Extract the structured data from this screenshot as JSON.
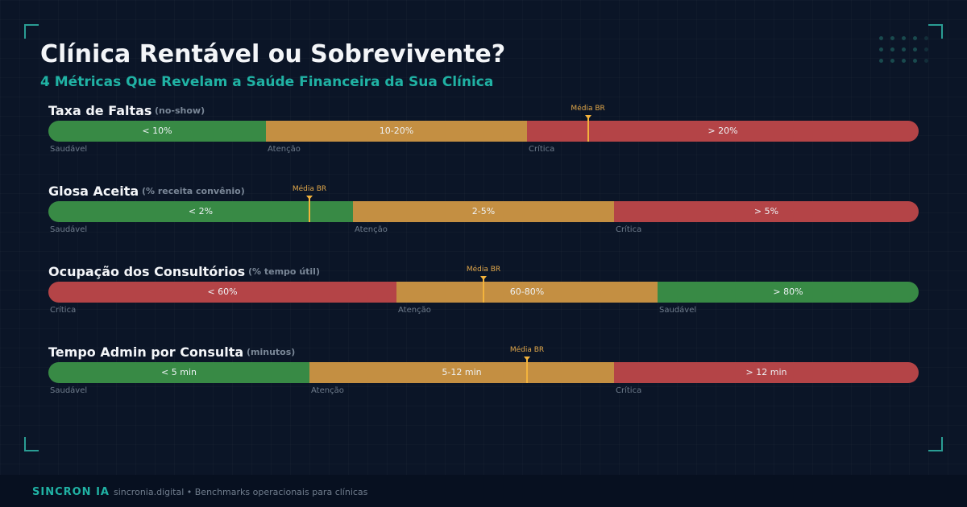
{
  "header": {
    "title": "Clínica Rentável ou Sobrevivente?",
    "subtitle": "4 Métricas Que Revelam a Saúde Financeira da Sua Clínica"
  },
  "chart_data": {
    "type": "bar",
    "marker_label": "Média BR",
    "colors": {
      "healthy": "#388a45",
      "warning": "#c48f42",
      "critical": "#b44447",
      "marker": "#f3b33c"
    },
    "metrics": [
      {
        "label": "Taxa de Faltas",
        "note": "(no-show)",
        "segments": [
          {
            "range": "< 10%",
            "status": "Saudável",
            "kind": "healthy",
            "share": 0.25
          },
          {
            "range": "10-20%",
            "status": "Atenção",
            "kind": "warning",
            "share": 0.3
          },
          {
            "range": "> 20%",
            "status": "Crítica",
            "kind": "critical",
            "share": 0.45
          }
        ],
        "benchmark": 0.62
      },
      {
        "label": "Glosa Aceita",
        "note": "(% receita convênio)",
        "segments": [
          {
            "range": "< 2%",
            "status": "Saudável",
            "kind": "healthy",
            "share": 0.35
          },
          {
            "range": "2-5%",
            "status": "Atenção",
            "kind": "warning",
            "share": 0.3
          },
          {
            "range": "> 5%",
            "status": "Crítica",
            "kind": "critical",
            "share": 0.35
          }
        ],
        "benchmark": 0.3
      },
      {
        "label": "Ocupação dos Consultórios",
        "note": "(% tempo útil)",
        "segments": [
          {
            "range": "< 60%",
            "status": "Crítica",
            "kind": "critical",
            "share": 0.4
          },
          {
            "range": "60-80%",
            "status": "Atenção",
            "kind": "warning",
            "share": 0.3
          },
          {
            "range": "> 80%",
            "status": "Saudável",
            "kind": "healthy",
            "share": 0.3
          }
        ],
        "benchmark": 0.5
      },
      {
        "label": "Tempo Admin por Consulta",
        "note": "(minutos)",
        "segments": [
          {
            "range": "< 5 min",
            "status": "Saudável",
            "kind": "healthy",
            "share": 0.3
          },
          {
            "range": "5-12 min",
            "status": "Atenção",
            "kind": "warning",
            "share": 0.35
          },
          {
            "range": "> 12 min",
            "status": "Crítica",
            "kind": "critical",
            "share": 0.35
          }
        ],
        "benchmark": 0.55
      }
    ]
  },
  "footer": {
    "brand": "SINCRON IA",
    "text": "sincronia.digital  •  Benchmarks operacionais para clínicas"
  }
}
